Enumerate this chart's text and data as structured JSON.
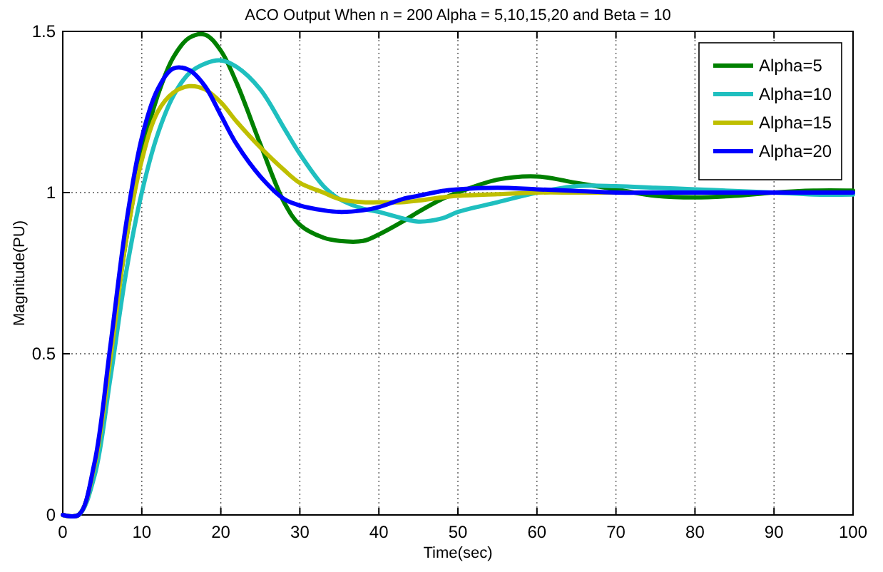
{
  "chart_data": {
    "type": "line",
    "title": "ACO Output When n = 200 Alpha = 5,10,15,20 and Beta = 10",
    "xlabel": "Time(sec)",
    "ylabel": "Magnitude(PU)",
    "x": [
      0,
      2,
      4,
      6,
      8,
      10,
      12,
      14,
      16,
      18,
      20,
      22,
      25,
      28,
      30,
      33,
      35,
      38,
      40,
      43,
      45,
      48,
      50,
      55,
      60,
      65,
      70,
      75,
      80,
      85,
      90,
      95,
      100
    ],
    "series": [
      {
        "name": "Alpha=5",
        "color": "#008000",
        "values": [
          0,
          0,
          0.15,
          0.5,
          0.85,
          1.12,
          1.3,
          1.42,
          1.48,
          1.49,
          1.44,
          1.34,
          1.15,
          0.97,
          0.9,
          0.86,
          0.85,
          0.85,
          0.87,
          0.91,
          0.94,
          0.98,
          1.0,
          1.04,
          1.05,
          1.03,
          1.01,
          0.99,
          0.985,
          0.99,
          1.0,
          1.006,
          1.006
        ]
      },
      {
        "name": "Alpha=10",
        "color": "#1fbfbf",
        "values": [
          0,
          0,
          0.12,
          0.42,
          0.75,
          1.0,
          1.18,
          1.3,
          1.37,
          1.4,
          1.41,
          1.39,
          1.32,
          1.2,
          1.12,
          1.02,
          0.98,
          0.95,
          0.94,
          0.92,
          0.91,
          0.92,
          0.94,
          0.97,
          1.0,
          1.02,
          1.02,
          1.015,
          1.01,
          1.005,
          1.0,
          0.994,
          0.994
        ]
      },
      {
        "name": "Alpha=15",
        "color": "#bfbf00",
        "values": [
          0,
          0,
          0.15,
          0.48,
          0.85,
          1.1,
          1.25,
          1.31,
          1.33,
          1.32,
          1.28,
          1.22,
          1.14,
          1.07,
          1.03,
          1.0,
          0.98,
          0.97,
          0.97,
          0.97,
          0.975,
          0.985,
          0.99,
          0.995,
          1.0,
          1.0,
          1.0,
          1.0,
          null,
          null,
          null,
          null,
          null
        ]
      },
      {
        "name": "Alpha=20",
        "color": "#0000ff",
        "values": [
          0,
          0,
          0.16,
          0.52,
          0.9,
          1.17,
          1.32,
          1.385,
          1.38,
          1.33,
          1.24,
          1.15,
          1.05,
          0.98,
          0.96,
          0.945,
          0.94,
          0.945,
          0.955,
          0.98,
          0.99,
          1.005,
          1.01,
          1.015,
          1.01,
          1.005,
          1.0,
          1.0,
          1.0,
          1.0,
          1.0,
          1.0,
          1.0
        ]
      }
    ],
    "xlim": [
      0,
      100
    ],
    "xticks": [
      0,
      10,
      20,
      30,
      40,
      50,
      60,
      70,
      80,
      90,
      100
    ],
    "ylim": [
      0,
      1.5
    ],
    "yticks": [
      0,
      0.5,
      1,
      1.5
    ],
    "grid": true,
    "legend": "top right",
    "line_style": "solid",
    "marker": "none"
  }
}
